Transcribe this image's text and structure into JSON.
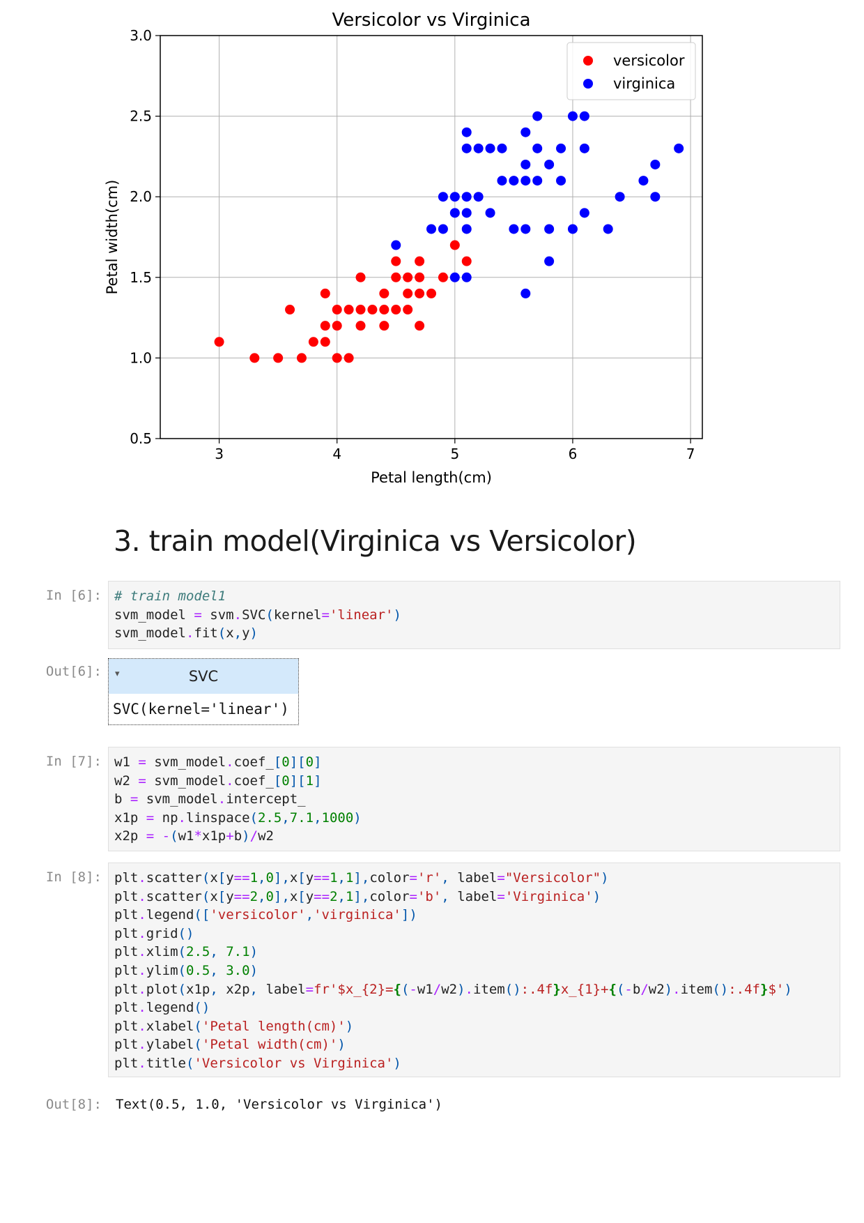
{
  "chart_data": {
    "type": "scatter",
    "title": "Versicolor vs Virginica",
    "xlabel": "Petal length(cm)",
    "ylabel": "Petal width(cm)",
    "xlim": [
      2.5,
      7.1
    ],
    "ylim": [
      0.5,
      3.0
    ],
    "xticks": [
      "3",
      "4",
      "5",
      "6",
      "7"
    ],
    "yticks": [
      "0.5",
      "1.0",
      "1.5",
      "2.0",
      "2.5",
      "3.0"
    ],
    "grid": true,
    "legend_position": "top-right",
    "series": [
      {
        "name": "versicolor",
        "color": "#ff0000",
        "points": [
          [
            3.0,
            1.1
          ],
          [
            3.3,
            1.0
          ],
          [
            3.5,
            1.0
          ],
          [
            3.6,
            1.3
          ],
          [
            3.7,
            1.0
          ],
          [
            3.8,
            1.1
          ],
          [
            3.9,
            1.1
          ],
          [
            3.9,
            1.2
          ],
          [
            3.9,
            1.4
          ],
          [
            4.0,
            1.0
          ],
          [
            4.0,
            1.2
          ],
          [
            4.0,
            1.3
          ],
          [
            4.1,
            1.0
          ],
          [
            4.1,
            1.3
          ],
          [
            4.2,
            1.2
          ],
          [
            4.2,
            1.3
          ],
          [
            4.2,
            1.5
          ],
          [
            4.3,
            1.3
          ],
          [
            4.4,
            1.2
          ],
          [
            4.4,
            1.3
          ],
          [
            4.4,
            1.4
          ],
          [
            4.5,
            1.3
          ],
          [
            4.5,
            1.5
          ],
          [
            4.5,
            1.6
          ],
          [
            4.6,
            1.3
          ],
          [
            4.6,
            1.4
          ],
          [
            4.6,
            1.5
          ],
          [
            4.7,
            1.2
          ],
          [
            4.7,
            1.4
          ],
          [
            4.7,
            1.5
          ],
          [
            4.7,
            1.6
          ],
          [
            4.8,
            1.4
          ],
          [
            4.9,
            1.5
          ],
          [
            5.0,
            1.7
          ],
          [
            5.1,
            1.6
          ]
        ]
      },
      {
        "name": "virginica",
        "color": "#0000ff",
        "points": [
          [
            4.5,
            1.7
          ],
          [
            4.8,
            1.8
          ],
          [
            4.9,
            1.8
          ],
          [
            4.9,
            2.0
          ],
          [
            5.0,
            1.5
          ],
          [
            5.0,
            1.9
          ],
          [
            5.0,
            2.0
          ],
          [
            5.1,
            1.5
          ],
          [
            5.1,
            1.8
          ],
          [
            5.1,
            1.9
          ],
          [
            5.1,
            2.0
          ],
          [
            5.1,
            2.3
          ],
          [
            5.1,
            2.4
          ],
          [
            5.2,
            2.0
          ],
          [
            5.2,
            2.3
          ],
          [
            5.3,
            1.9
          ],
          [
            5.3,
            2.3
          ],
          [
            5.4,
            2.1
          ],
          [
            5.4,
            2.3
          ],
          [
            5.5,
            1.8
          ],
          [
            5.5,
            2.1
          ],
          [
            5.6,
            1.4
          ],
          [
            5.6,
            1.8
          ],
          [
            5.6,
            2.1
          ],
          [
            5.6,
            2.2
          ],
          [
            5.6,
            2.4
          ],
          [
            5.7,
            2.1
          ],
          [
            5.7,
            2.3
          ],
          [
            5.7,
            2.5
          ],
          [
            5.8,
            1.6
          ],
          [
            5.8,
            1.8
          ],
          [
            5.8,
            2.2
          ],
          [
            5.9,
            2.1
          ],
          [
            5.9,
            2.3
          ],
          [
            6.0,
            1.8
          ],
          [
            6.0,
            2.5
          ],
          [
            6.1,
            1.9
          ],
          [
            6.1,
            2.3
          ],
          [
            6.1,
            2.5
          ],
          [
            6.3,
            1.8
          ],
          [
            6.4,
            2.0
          ],
          [
            6.6,
            2.1
          ],
          [
            6.7,
            2.0
          ],
          [
            6.7,
            2.2
          ],
          [
            6.9,
            2.3
          ]
        ]
      }
    ]
  },
  "heading": "3. train model(Virginica vs Versicolor)",
  "prompts": {
    "in6": "In [6]:",
    "out6": "Out[6]:",
    "in7": "In [7]:",
    "in8": "In [8]:",
    "out8": "Out[8]:"
  },
  "svc": {
    "caret": "▾",
    "name": "SVC",
    "repr": "SVC(kernel='linear')"
  },
  "out8_text": "Text(0.5, 1.0, 'Versicolor vs Virginica')"
}
